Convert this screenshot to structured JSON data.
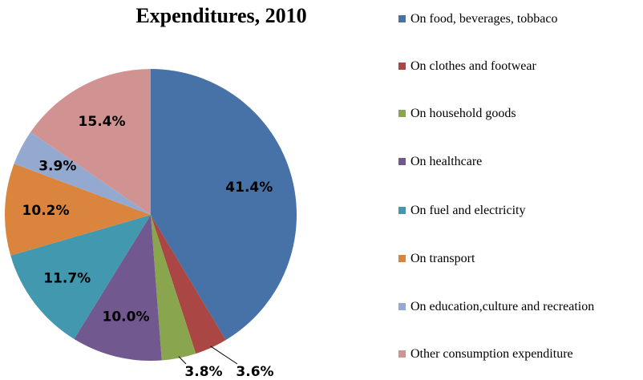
{
  "chart_data": {
    "type": "pie",
    "title": "Expenditures, 2010",
    "categories": [
      "On food, beverages, tobbaco",
      "On clothes and footwear",
      "On household goods",
      "On healthcare",
      "On fuel and electricity",
      "On transport",
      "On education,culture and recreation",
      "Other consumption expenditure"
    ],
    "values": [
      41.4,
      3.6,
      3.8,
      10.0,
      11.7,
      10.2,
      3.9,
      15.4
    ],
    "value_labels": [
      "41.4%",
      "3.6%",
      "3.8%",
      "10.0%",
      "11.7%",
      "10.2%",
      "3.9%",
      "15.4%"
    ],
    "colors": [
      "#4672a8",
      "#aa4643",
      "#89a54e",
      "#71588f",
      "#4198af",
      "#db843d",
      "#93a9cf",
      "#d19392"
    ]
  }
}
